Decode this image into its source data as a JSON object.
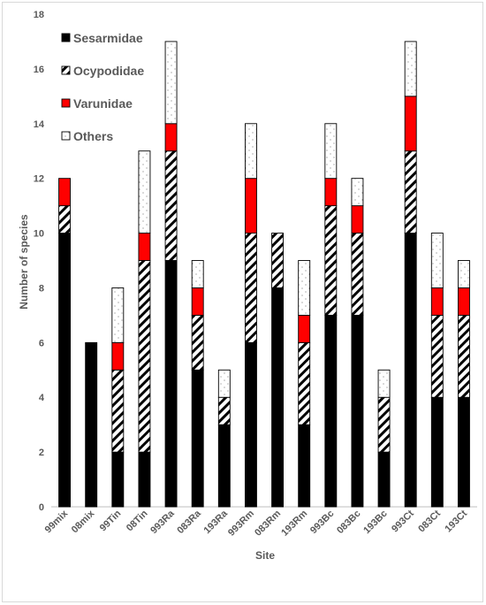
{
  "chart_data": {
    "type": "bar",
    "stacked": true,
    "title": "",
    "xlabel": "Site",
    "ylabel": "Number of species",
    "ylim": [
      0,
      18
    ],
    "yticks": [
      0,
      2,
      4,
      6,
      8,
      10,
      12,
      14,
      16,
      18
    ],
    "grid": false,
    "legend_position": "top-left",
    "categories": [
      "99mix",
      "08mix",
      "99Tin",
      "08Tin",
      "993Ra",
      "083Ra",
      "193Ra",
      "993Rm",
      "083Rm",
      "193Rm",
      "993Bc",
      "083Bc",
      "193Bc",
      "993Ct",
      "083Ct",
      "193Ct"
    ],
    "series": [
      {
        "name": "Sesarmidae",
        "fill": "solid",
        "color": "#000000",
        "values": [
          10,
          6,
          2,
          2,
          9,
          5,
          3,
          6,
          8,
          3,
          7,
          7,
          2,
          10,
          4,
          4
        ]
      },
      {
        "name": "Ocypodidae",
        "fill": "hatch",
        "color": "#000000",
        "values": [
          1,
          0,
          3,
          7,
          4,
          2,
          1,
          4,
          2,
          3,
          4,
          3,
          2,
          3,
          3,
          3
        ]
      },
      {
        "name": "Varunidae",
        "fill": "solid",
        "color": "#ff0000",
        "values": [
          1,
          0,
          1,
          1,
          1,
          1,
          0,
          2,
          0,
          1,
          1,
          1,
          0,
          2,
          1,
          1
        ]
      },
      {
        "name": "Others",
        "fill": "dots",
        "color": "#ffffff",
        "values": [
          0,
          0,
          2,
          3,
          3,
          1,
          1,
          2,
          0,
          2,
          2,
          1,
          1,
          2,
          2,
          1
        ]
      }
    ]
  }
}
